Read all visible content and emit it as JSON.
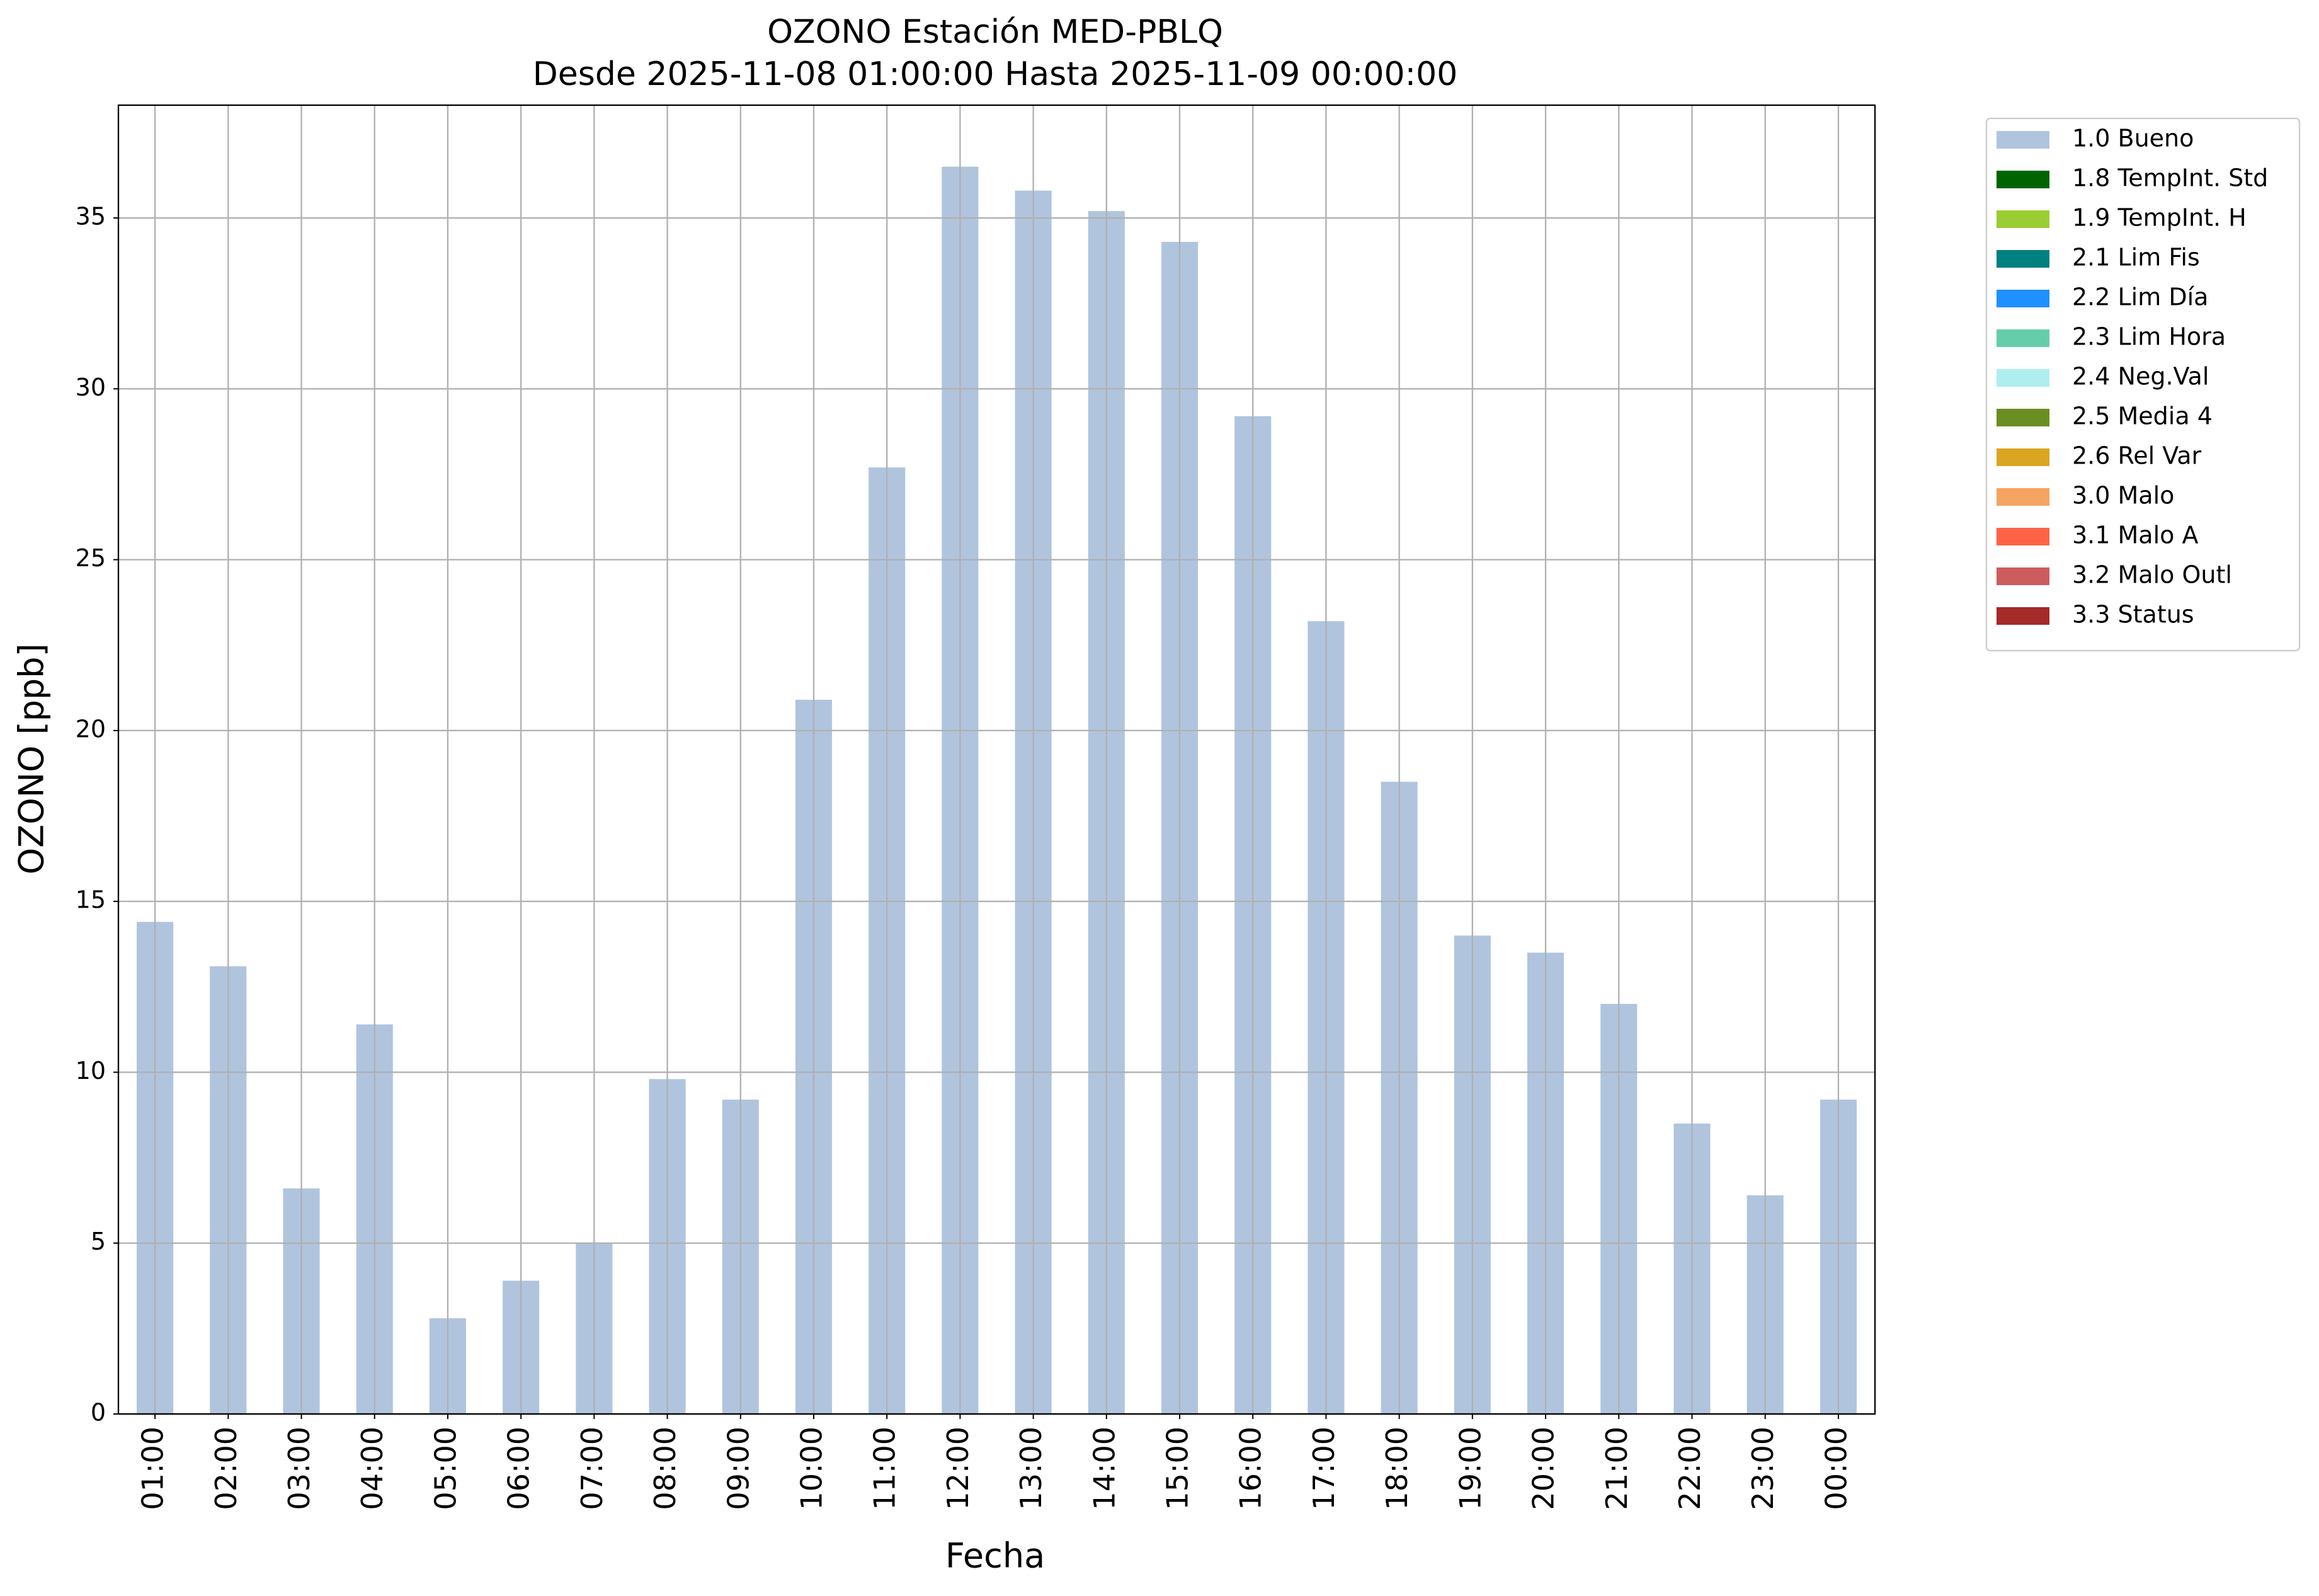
{
  "chart_data": {
    "type": "bar",
    "title": "OZONO Estación MED-PBLQ",
    "subtitle": "Desde 2025-11-08 01:00:00 Hasta 2025-11-09 00:00:00",
    "x_label": "Fecha",
    "y_label": "OZONO [ppb]",
    "categories": [
      "01:00",
      "02:00",
      "03:00",
      "04:00",
      "05:00",
      "06:00",
      "07:00",
      "08:00",
      "09:00",
      "10:00",
      "11:00",
      "12:00",
      "13:00",
      "14:00",
      "15:00",
      "16:00",
      "17:00",
      "18:00",
      "19:00",
      "20:00",
      "21:00",
      "22:00",
      "23:00",
      "00:00"
    ],
    "series": [
      {
        "name": "1.0 Bueno",
        "color": "#b0c4de",
        "values": [
          14.4,
          13.1,
          6.6,
          11.4,
          2.8,
          3.9,
          5.0,
          9.8,
          9.2,
          20.9,
          27.7,
          36.5,
          35.8,
          35.2,
          34.3,
          29.2,
          23.2,
          18.5,
          14.0,
          13.5,
          12.0,
          8.5,
          6.4,
          9.2
        ]
      },
      {
        "name": "1.8 TempInt. Std",
        "color": "#006400"
      },
      {
        "name": "1.9 TempInt. H",
        "color": "#9acd32"
      },
      {
        "name": "2.1 Lim Fis",
        "color": "#008080"
      },
      {
        "name": "2.2 Lim Día",
        "color": "#1e90ff"
      },
      {
        "name": "2.3 Lim Hora",
        "color": "#66cdaa"
      },
      {
        "name": "2.4 Neg.Val",
        "color": "#afeeee"
      },
      {
        "name": "2.5 Media 4",
        "color": "#6b8e23"
      },
      {
        "name": "2.6 Rel Var",
        "color": "#daa520"
      },
      {
        "name": "3.0 Malo",
        "color": "#f4a460"
      },
      {
        "name": "3.1 Malo A",
        "color": "#ff6347"
      },
      {
        "name": "3.2 Malo Outl",
        "color": "#cd5c5c"
      },
      {
        "name": "3.3 Status",
        "color": "#a52a2a"
      }
    ],
    "ylim": [
      0,
      38.3
    ],
    "yticks": [
      0,
      5,
      10,
      15,
      20,
      25,
      30,
      35
    ],
    "grid": true,
    "legend": "outside-upper-right"
  }
}
